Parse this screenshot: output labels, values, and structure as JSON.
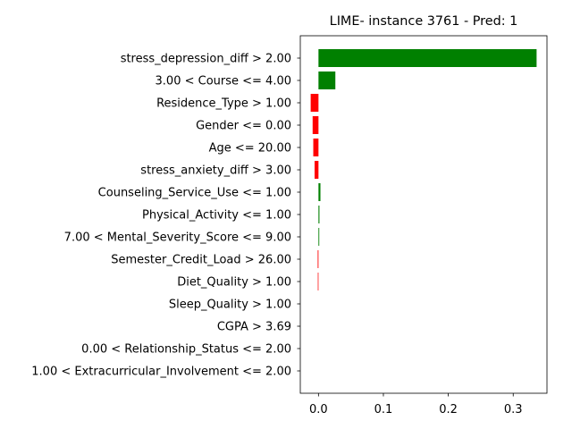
{
  "chart_data": {
    "type": "bar",
    "orientation": "horizontal",
    "title": "LIME- instance 3761 - Pred: 1",
    "xlabel": "",
    "ylabel": "",
    "xlim": [
      -0.028,
      0.352
    ],
    "xticks": [
      0.0,
      0.1,
      0.2,
      0.3
    ],
    "xtick_labels": [
      "0.0",
      "0.1",
      "0.2",
      "0.3"
    ],
    "grid": false,
    "positive_color": "#008000",
    "negative_color": "#ff0000",
    "categories": [
      "stress_depression_diff > 2.00",
      "3.00 < Course <= 4.00",
      "Residence_Type > 1.00",
      "Gender <= 0.00",
      "Age <= 20.00",
      "stress_anxiety_diff > 3.00",
      "Counseling_Service_Use <= 1.00",
      "Physical_Activity <= 1.00",
      "7.00 < Mental_Severity_Score <= 9.00",
      "Semester_Credit_Load > 26.00",
      "Diet_Quality > 1.00",
      "Sleep_Quality > 1.00",
      "CGPA > 3.69",
      "0.00 < Relationship_Status <= 2.00",
      "1.00 < Extracurricular_Involvement <= 2.00"
    ],
    "values": [
      0.336,
      0.026,
      -0.012,
      -0.009,
      -0.008,
      -0.006,
      0.003,
      0.0015,
      0.0012,
      -0.0012,
      -0.001,
      0.0,
      0.0,
      0.0,
      0.0
    ]
  }
}
